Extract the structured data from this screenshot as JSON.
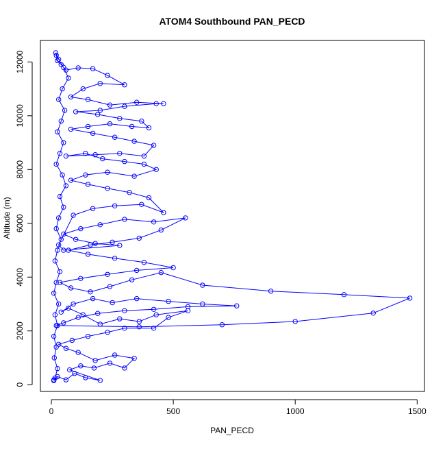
{
  "chart_data": {
    "type": "scatter",
    "title": "ATOM4 Southbound PAN_PECD",
    "xlabel": "PAN_PECD",
    "ylabel": "Altitude (m)",
    "xlim": [
      -45,
      1530
    ],
    "ylim": [
      -250,
      12800
    ],
    "x_ticks": [
      0,
      500,
      1000,
      1500
    ],
    "y_ticks": [
      0,
      2000,
      4000,
      6000,
      8000,
      10000,
      12000
    ],
    "x_tick_labels": [
      "0",
      "500",
      "1000",
      "1500"
    ],
    "y_tick_labels": [
      "0",
      "2000",
      "4000",
      "6000",
      "8000",
      "10000",
      "12000"
    ],
    "grid": false,
    "legend": "none",
    "color": "#0000ff",
    "marker": "open-circle",
    "connected": true,
    "series": [
      {
        "values": [
          [
            10,
            150
          ],
          [
            25,
            300
          ],
          [
            60,
            180
          ],
          [
            95,
            420
          ],
          [
            140,
            260
          ],
          [
            200,
            160
          ],
          [
            75,
            550
          ],
          [
            120,
            700
          ],
          [
            175,
            620
          ],
          [
            240,
            800
          ],
          [
            300,
            620
          ],
          [
            340,
            980
          ],
          [
            260,
            1100
          ],
          [
            180,
            900
          ],
          [
            110,
            1200
          ],
          [
            60,
            1350
          ],
          [
            30,
            1500
          ],
          [
            85,
            1650
          ],
          [
            150,
            1800
          ],
          [
            230,
            1950
          ],
          [
            300,
            2100
          ],
          [
            420,
            2100
          ],
          [
            480,
            2500
          ],
          [
            560,
            2750
          ],
          [
            430,
            2600
          ],
          [
            360,
            2350
          ],
          [
            280,
            2450
          ],
          [
            200,
            2250
          ],
          [
            130,
            2600
          ],
          [
            70,
            2850
          ],
          [
            40,
            2700
          ],
          [
            90,
            3000
          ],
          [
            170,
            3200
          ],
          [
            250,
            3050
          ],
          [
            350,
            3200
          ],
          [
            480,
            3100
          ],
          [
            620,
            3000
          ],
          [
            760,
            2930
          ],
          [
            560,
            2900
          ],
          [
            420,
            2800
          ],
          [
            300,
            2750
          ],
          [
            190,
            2650
          ],
          [
            110,
            2500
          ],
          [
            50,
            2300
          ],
          [
            20,
            2200
          ],
          [
            360,
            2150
          ],
          [
            700,
            2230
          ],
          [
            1000,
            2350
          ],
          [
            1320,
            2660
          ],
          [
            1470,
            3220
          ],
          [
            1200,
            3350
          ],
          [
            900,
            3480
          ],
          [
            620,
            3700
          ],
          [
            450,
            4170
          ],
          [
            330,
            3900
          ],
          [
            240,
            3650
          ],
          [
            160,
            3450
          ],
          [
            80,
            3600
          ],
          [
            35,
            3800
          ],
          [
            120,
            3950
          ],
          [
            230,
            4100
          ],
          [
            350,
            4250
          ],
          [
            500,
            4350
          ],
          [
            380,
            4550
          ],
          [
            260,
            4700
          ],
          [
            150,
            4850
          ],
          [
            70,
            5000
          ],
          [
            160,
            5200
          ],
          [
            250,
            5300
          ],
          [
            360,
            5450
          ],
          [
            450,
            5750
          ],
          [
            550,
            6200
          ],
          [
            420,
            6050
          ],
          [
            300,
            6150
          ],
          [
            200,
            5950
          ],
          [
            120,
            5800
          ],
          [
            50,
            5600
          ],
          [
            100,
            5400
          ],
          [
            180,
            5250
          ],
          [
            280,
            5180
          ],
          [
            50,
            5000
          ],
          [
            30,
            5200
          ],
          [
            90,
            6300
          ],
          [
            170,
            6550
          ],
          [
            260,
            6650
          ],
          [
            370,
            6700
          ],
          [
            460,
            6400
          ],
          [
            400,
            6950
          ],
          [
            320,
            7150
          ],
          [
            230,
            7300
          ],
          [
            150,
            7450
          ],
          [
            80,
            7600
          ],
          [
            140,
            7800
          ],
          [
            230,
            7900
          ],
          [
            340,
            7750
          ],
          [
            430,
            8000
          ],
          [
            380,
            8200
          ],
          [
            300,
            8300
          ],
          [
            210,
            8400
          ],
          [
            140,
            8600
          ],
          [
            60,
            8500
          ],
          [
            180,
            8550
          ],
          [
            280,
            8600
          ],
          [
            380,
            8500
          ],
          [
            420,
            8900
          ],
          [
            340,
            9050
          ],
          [
            260,
            9200
          ],
          [
            170,
            9350
          ],
          [
            80,
            9500
          ],
          [
            150,
            9600
          ],
          [
            240,
            9700
          ],
          [
            330,
            9600
          ],
          [
            400,
            9550
          ],
          [
            370,
            9800
          ],
          [
            280,
            9900
          ],
          [
            190,
            10050
          ],
          [
            100,
            10150
          ],
          [
            200,
            10200
          ],
          [
            300,
            10350
          ],
          [
            430,
            10450
          ],
          [
            460,
            10450
          ],
          [
            350,
            10500
          ],
          [
            240,
            10400
          ],
          [
            150,
            10600
          ],
          [
            80,
            10700
          ],
          [
            130,
            11000
          ],
          [
            200,
            11200
          ],
          [
            300,
            11150
          ],
          [
            230,
            11500
          ],
          [
            170,
            11750
          ],
          [
            110,
            11780
          ],
          [
            60,
            11700
          ],
          [
            40,
            11900
          ],
          [
            25,
            12050
          ],
          [
            20,
            12250
          ],
          [
            18,
            12340
          ],
          [
            30,
            12100
          ],
          [
            50,
            11800
          ],
          [
            70,
            11400
          ],
          [
            45,
            11000
          ],
          [
            30,
            10600
          ],
          [
            55,
            10200
          ],
          [
            40,
            9800
          ],
          [
            25,
            9400
          ],
          [
            50,
            9000
          ],
          [
            35,
            8600
          ],
          [
            20,
            8200
          ],
          [
            45,
            7800
          ],
          [
            60,
            7400
          ],
          [
            35,
            7000
          ],
          [
            50,
            6600
          ],
          [
            30,
            6200
          ],
          [
            20,
            5800
          ],
          [
            40,
            5400
          ],
          [
            25,
            5000
          ],
          [
            15,
            4600
          ],
          [
            35,
            4200
          ],
          [
            20,
            3800
          ],
          [
            10,
            3400
          ],
          [
            30,
            3000
          ],
          [
            15,
            2600
          ],
          [
            25,
            2200
          ],
          [
            10,
            1800
          ],
          [
            20,
            1400
          ],
          [
            12,
            1000
          ],
          [
            25,
            600
          ],
          [
            15,
            250
          ],
          [
            10,
            180
          ]
        ]
      }
    ]
  }
}
